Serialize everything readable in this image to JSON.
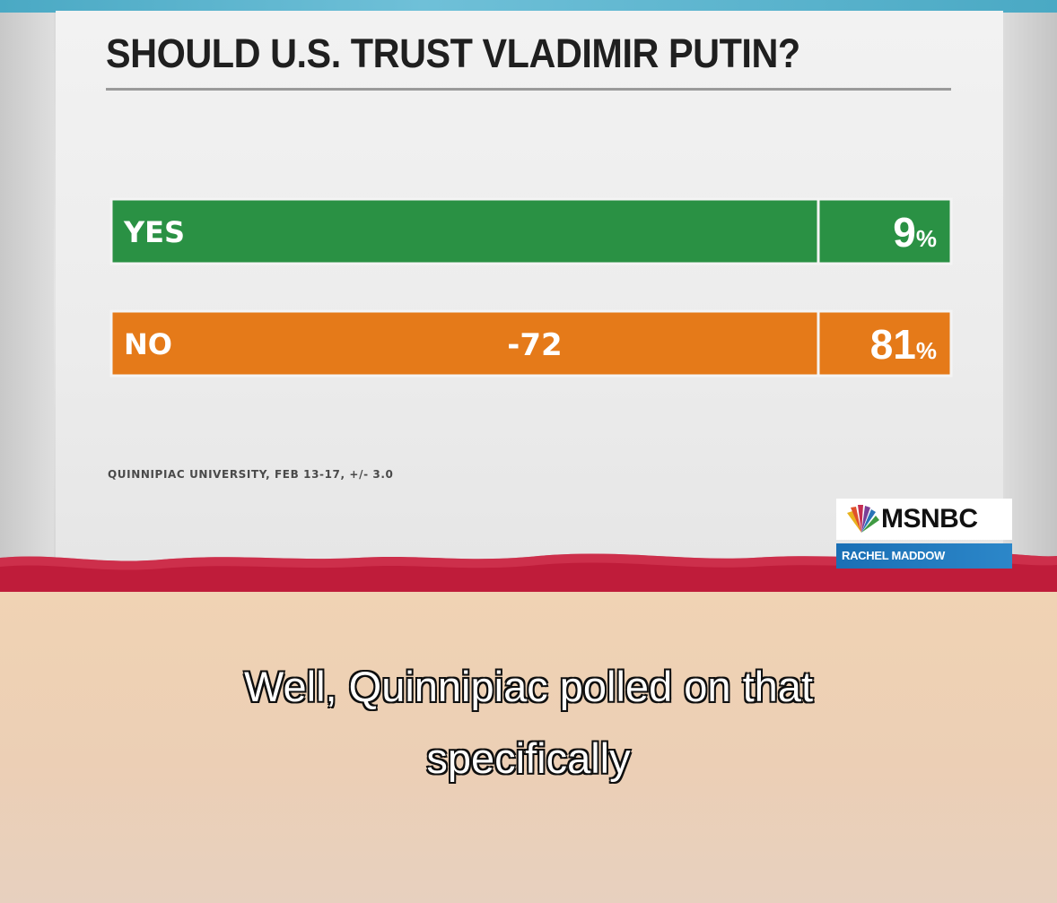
{
  "chart_data": {
    "type": "bar",
    "orientation": "horizontal",
    "title": "SHOULD U.S. TRUST VLADIMIR PUTIN?",
    "categories": [
      "YES",
      "NO"
    ],
    "values": [
      9,
      81
    ],
    "value_labels": [
      "9%",
      "81%"
    ],
    "annotation": "-72",
    "source": "QUINNIPIAC UNIVERSITY, FEB 13-17, +/- 3.0",
    "colors": [
      "#2a9144",
      "#e57a19"
    ],
    "xlim": [
      0,
      81
    ],
    "grid": false,
    "legend": "none"
  },
  "branding": {
    "network": "MSNBC",
    "show": "RACHEL MADDOW"
  },
  "caption": {
    "line1": "Well, Quinnipiac polled on that",
    "line2": "specifically"
  },
  "colors": {
    "band": "#bf1c3a",
    "title_text": "#1f1f1f"
  }
}
